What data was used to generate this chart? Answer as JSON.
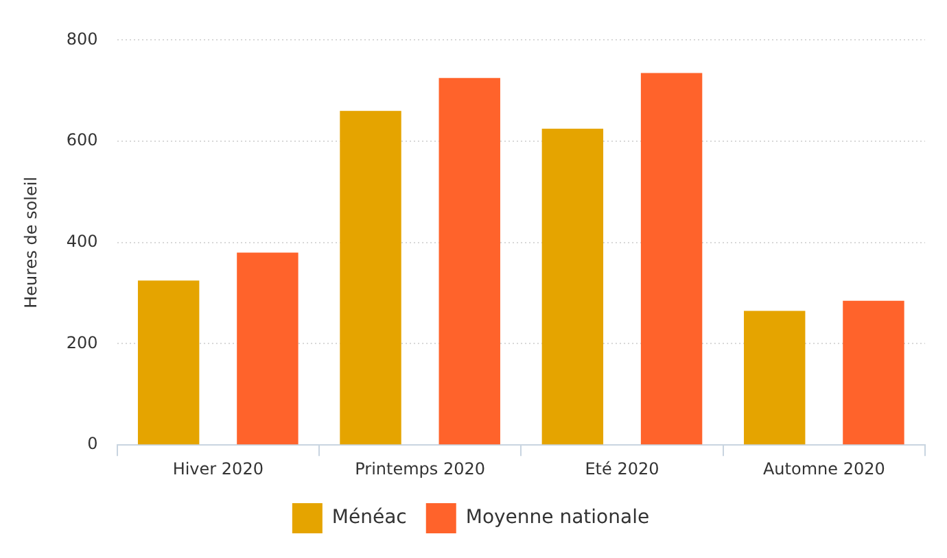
{
  "chart_data": {
    "type": "bar",
    "ylabel": "Heures de soleil",
    "categories": [
      "Hiver 2020",
      "Printemps 2020",
      "Eté 2020",
      "Automne 2020"
    ],
    "series": [
      {
        "name": "Ménéac",
        "color": "#e5a400",
        "values": [
          325,
          660,
          625,
          265
        ]
      },
      {
        "name": "Moyenne nationale",
        "color": "#ff632b",
        "values": [
          380,
          725,
          735,
          285
        ]
      }
    ],
    "ylim": [
      0,
      800
    ],
    "yticks": [
      0,
      200,
      400,
      600,
      800
    ],
    "grid": "y",
    "legend": "bottom"
  }
}
